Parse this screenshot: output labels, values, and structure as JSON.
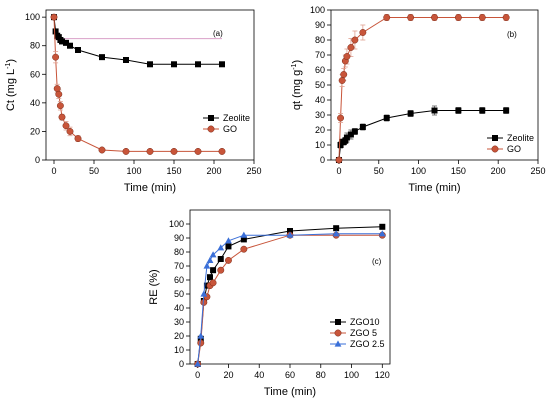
{
  "chart_data": [
    {
      "type": "line",
      "panel": "(a)",
      "xlabel": "Time (min)",
      "ylabel": "Ct (mg L",
      "ylabel_sup": "-1",
      "ylabel_end": ")",
      "xlim": [
        -10,
        250
      ],
      "ylim": [
        0,
        105
      ],
      "xticks": [
        0,
        50,
        100,
        150,
        200,
        250
      ],
      "yticks": [
        0,
        20,
        40,
        60,
        80,
        100
      ],
      "legend_position": "right-middle",
      "series": [
        {
          "name": "Zeolite",
          "color": "#000000",
          "marker": "square",
          "x": [
            0,
            2,
            4,
            6,
            8,
            10,
            15,
            20,
            30,
            60,
            90,
            120,
            150,
            180,
            210
          ],
          "y": [
            100,
            90,
            87,
            86,
            84,
            83,
            82,
            80,
            77,
            72,
            70,
            67,
            67,
            67,
            67
          ],
          "err": [
            0,
            0,
            0,
            0,
            0,
            0,
            0,
            0,
            0,
            0,
            0,
            0,
            0,
            0,
            0
          ]
        },
        {
          "name": "GO",
          "color": "#c8553a",
          "marker": "circle",
          "x": [
            0,
            2,
            4,
            6,
            8,
            10,
            15,
            20,
            30,
            60,
            90,
            120,
            150,
            180,
            210
          ],
          "y": [
            100,
            72,
            50,
            46,
            38,
            30,
            24,
            20,
            15,
            7,
            6,
            6,
            6,
            6,
            6
          ],
          "err": [
            0,
            4,
            3,
            3,
            3,
            2,
            3,
            3,
            2,
            1,
            1,
            1,
            1,
            1,
            1
          ]
        }
      ],
      "reference_line": {
        "y": 85,
        "x0": 0,
        "x1": 210,
        "color": "#d9a0c8"
      }
    },
    {
      "type": "line",
      "panel": "(b)",
      "xlabel": "Time (min)",
      "ylabel": "qt (mg g",
      "ylabel_sup": "-1",
      "ylabel_end": ")",
      "xlim": [
        -10,
        250
      ],
      "ylim": [
        0,
        100
      ],
      "xticks": [
        0,
        50,
        100,
        150,
        200,
        250
      ],
      "yticks": [
        0,
        10,
        20,
        30,
        40,
        50,
        60,
        70,
        80,
        90,
        100
      ],
      "legend_position": "bottom-right",
      "series": [
        {
          "name": "Zeolite",
          "color": "#000000",
          "marker": "square",
          "x": [
            0,
            2,
            4,
            6,
            8,
            10,
            15,
            20,
            30,
            60,
            90,
            120,
            150,
            180,
            210
          ],
          "y": [
            0,
            10,
            12,
            12,
            13,
            15,
            17,
            19,
            22,
            28,
            31,
            33,
            33,
            33,
            33
          ],
          "err": [
            0,
            2,
            2,
            2,
            2,
            3,
            3,
            2,
            2,
            2,
            2,
            3,
            2,
            2,
            2
          ]
        },
        {
          "name": "GO",
          "color": "#c8553a",
          "marker": "circle",
          "x": [
            0,
            2,
            4,
            6,
            8,
            10,
            15,
            20,
            30,
            60,
            90,
            120,
            150,
            180,
            210
          ],
          "y": [
            0,
            28,
            53,
            57,
            66,
            69,
            75,
            80,
            85,
            95,
            95,
            95,
            95,
            95,
            95
          ],
          "err": [
            0,
            3,
            4,
            4,
            4,
            5,
            6,
            6,
            5,
            2,
            2,
            2,
            2,
            2,
            2
          ]
        }
      ]
    },
    {
      "type": "line",
      "panel": "(c)",
      "xlabel": "Time (min)",
      "ylabel": "RE (%)",
      "xlim": [
        -5,
        125
      ],
      "ylim": [
        0,
        110
      ],
      "xticks": [
        0,
        20,
        40,
        60,
        80,
        100,
        120
      ],
      "yticks": [
        0,
        10,
        20,
        30,
        40,
        50,
        60,
        70,
        80,
        90,
        100
      ],
      "legend_position": "bottom-right",
      "series": [
        {
          "name": "ZGO10",
          "color": "#000000",
          "marker": "square",
          "x": [
            0,
            2,
            4,
            6,
            8,
            10,
            15,
            20,
            30,
            60,
            90,
            120
          ],
          "y": [
            0,
            18,
            45,
            56,
            62,
            67,
            75,
            84,
            89,
            95,
            97,
            98
          ]
        },
        {
          "name": "ZGO 5",
          "color": "#c8553a",
          "marker": "circle",
          "x": [
            0,
            2,
            4,
            6,
            8,
            10,
            15,
            20,
            30,
            60,
            90,
            120
          ],
          "y": [
            0,
            15,
            44,
            48,
            56,
            58,
            67,
            74,
            82,
            92,
            92,
            92
          ]
        },
        {
          "name": "ZGO 2.5",
          "color": "#3a6fd8",
          "marker": "triangle",
          "x": [
            0,
            2,
            4,
            6,
            8,
            10,
            15,
            20,
            30,
            60,
            90,
            120
          ],
          "y": [
            0,
            20,
            50,
            70,
            74,
            78,
            83,
            88,
            92,
            92,
            93,
            93
          ]
        }
      ]
    }
  ]
}
